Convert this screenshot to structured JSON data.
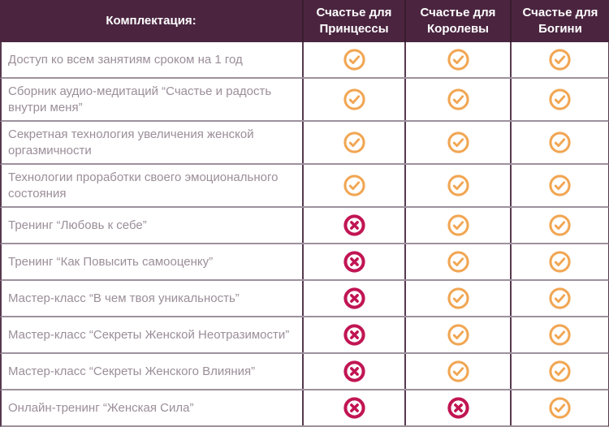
{
  "colors": {
    "header_bg": "#4B2540",
    "header_divider": "#3A1C2F",
    "header_text": "#FFFFFF",
    "row_text": "#9B8E99",
    "horizontal_border": "#9D919C",
    "vertical_border": "#56394E",
    "check_icon": "#F1A653",
    "cross_icon": "#C11553"
  },
  "icons": {
    "check": "check-circle-icon",
    "cross": "cross-circle-icon"
  },
  "table": {
    "header": {
      "feature_column": "Комплектация:",
      "plans": [
        "Счастье для Принцессы",
        "Счастье для Королевы",
        "Счастье для Богини"
      ]
    },
    "rows": [
      {
        "feature": "Доступ ко всем занятиям сроком на 1 год",
        "values": [
          "check",
          "check",
          "check"
        ]
      },
      {
        "feature": "Сборник аудио-медитаций “Счастье и радость внутри меня”",
        "values": [
          "check",
          "check",
          "check"
        ]
      },
      {
        "feature": "Секретная технология увеличения женской оргазмичности",
        "values": [
          "check",
          "check",
          "check"
        ]
      },
      {
        "feature": "Технологии проработки своего эмоционального состояния",
        "values": [
          "check",
          "check",
          "check"
        ]
      },
      {
        "feature": "Тренинг “Любовь к себе”",
        "values": [
          "cross",
          "check",
          "check"
        ]
      },
      {
        "feature": "Тренинг “Как Повысить самооценку”",
        "values": [
          "cross",
          "check",
          "check"
        ]
      },
      {
        "feature": "Мастер-класс “В чем твоя уникальность”",
        "values": [
          "cross",
          "check",
          "check"
        ]
      },
      {
        "feature": "Мастер-класс “Секреты Женской Неотразимости”",
        "values": [
          "cross",
          "check",
          "check"
        ]
      },
      {
        "feature": "Мастер-класс “Секреты Женского Влияния”",
        "values": [
          "cross",
          "check",
          "check"
        ]
      },
      {
        "feature": "Онлайн-тренинг “Женская Сила”",
        "values": [
          "cross",
          "cross",
          "check"
        ]
      }
    ]
  }
}
